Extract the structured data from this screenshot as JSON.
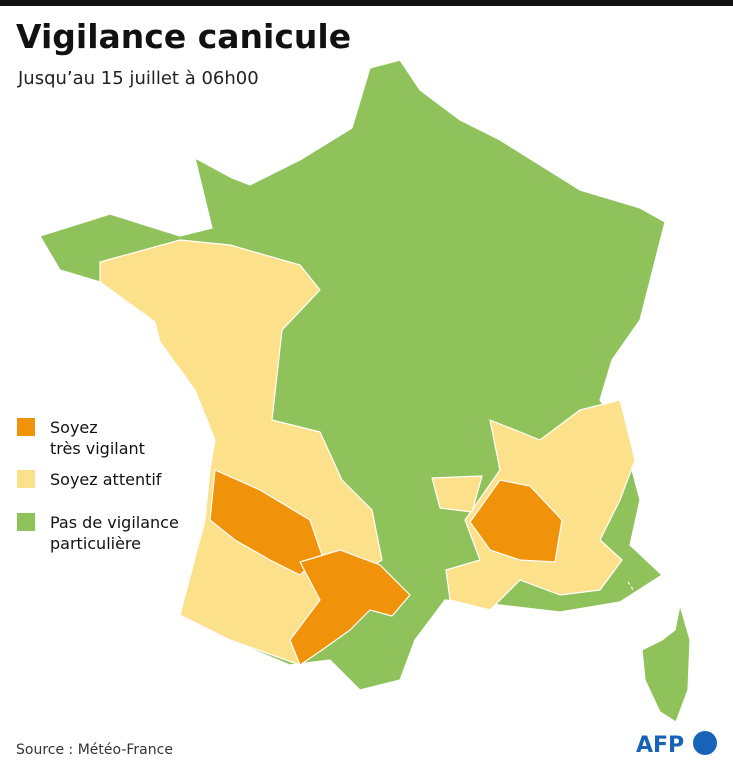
{
  "header": {
    "title": "Vigilance canicule",
    "subtitle": "Jusqu’au 15 juillet à 06h00"
  },
  "legend": [
    {
      "lines": [
        "Soyez",
        "très vigilant"
      ],
      "color": "#f0920a"
    },
    {
      "lines": [
        "Soyez attentif"
      ],
      "color": "#fde08a"
    },
    {
      "lines": [
        "Pas de vigilance",
        "particulière"
      ],
      "color": "#8fc25a"
    }
  ],
  "footer": {
    "source": "Source : Météo-France",
    "logo": "AFP",
    "logo_color": "#1763b8"
  }
}
